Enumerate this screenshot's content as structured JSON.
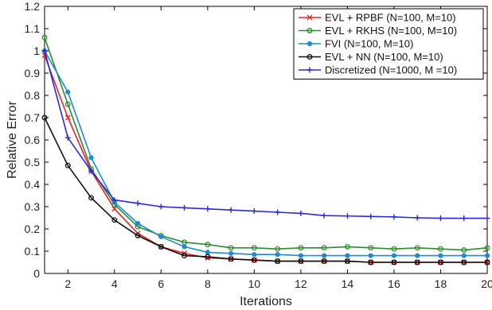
{
  "chart_data": {
    "type": "line",
    "xlabel": "Iterations",
    "ylabel": "Relative Error",
    "xlim": [
      1,
      20
    ],
    "ylim": [
      0,
      1.2
    ],
    "xticks": [
      2,
      4,
      6,
      8,
      10,
      12,
      14,
      16,
      18,
      20
    ],
    "yticks": [
      0,
      0.1,
      0.2,
      0.3,
      0.4,
      0.5,
      0.6,
      0.7,
      0.8,
      0.9,
      1,
      1.1,
      1.2
    ],
    "x": [
      1,
      2,
      3,
      4,
      5,
      6,
      7,
      8,
      9,
      10,
      11,
      12,
      13,
      14,
      15,
      16,
      17,
      18,
      19,
      20
    ],
    "grid": false,
    "legend_position": "top-right",
    "series": [
      {
        "name": "EVL + RPBF (N=100, M=10)",
        "color": "#e8262a",
        "marker": "x",
        "values": [
          0.98,
          0.7,
          0.46,
          0.29,
          0.18,
          0.12,
          0.09,
          0.07,
          0.065,
          0.06,
          0.055,
          0.055,
          0.055,
          0.055,
          0.05,
          0.05,
          0.05,
          0.05,
          0.05,
          0.05
        ]
      },
      {
        "name": "EVL + RKHS (N=100, M=10)",
        "color": "#2e8b2e",
        "marker": "circle",
        "values": [
          1.06,
          0.76,
          0.47,
          0.31,
          0.21,
          0.17,
          0.14,
          0.13,
          0.115,
          0.115,
          0.11,
          0.115,
          0.115,
          0.12,
          0.115,
          0.11,
          0.115,
          0.11,
          0.105,
          0.115
        ]
      },
      {
        "name": "FVI (N=100, M=10)",
        "color": "#1f8ad0",
        "marker": "dot",
        "values": [
          1.0,
          0.815,
          0.52,
          0.32,
          0.225,
          0.165,
          0.12,
          0.095,
          0.09,
          0.085,
          0.085,
          0.08,
          0.08,
          0.08,
          0.08,
          0.08,
          0.08,
          0.08,
          0.08,
          0.08
        ]
      },
      {
        "name": "EVL + NN (N=100, M=10)",
        "color": "#111111",
        "marker": "circle",
        "values": [
          0.7,
          0.485,
          0.34,
          0.24,
          0.17,
          0.12,
          0.08,
          0.075,
          0.065,
          0.06,
          0.055,
          0.055,
          0.055,
          0.055,
          0.05,
          0.05,
          0.05,
          0.05,
          0.05,
          0.05
        ]
      },
      {
        "name": "Discretized (N=1000, M =10)",
        "color": "#2a2ad8",
        "marker": "plus",
        "values": [
          1.0,
          0.61,
          0.46,
          0.33,
          0.315,
          0.3,
          0.295,
          0.29,
          0.285,
          0.28,
          0.275,
          0.27,
          0.26,
          0.258,
          0.256,
          0.254,
          0.25,
          0.248,
          0.248,
          0.248
        ]
      }
    ]
  }
}
